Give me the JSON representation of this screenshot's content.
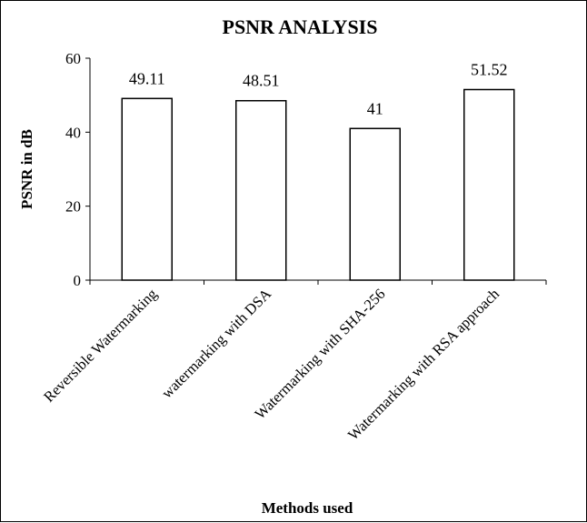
{
  "chart_data": {
    "type": "bar",
    "title": "PSNR ANALYSIS",
    "xlabel": "Methods used",
    "ylabel": "PSNR in dB",
    "categories": [
      "Reversible Watermarking",
      "watermarking with DSA",
      "Watermarking with SHA-256",
      "Watermarking with RSA approach"
    ],
    "values": [
      49.11,
      48.51,
      41,
      51.52
    ],
    "data_labels": [
      "49.11",
      "48.51",
      "41",
      "51.52"
    ],
    "ylim": [
      0,
      60
    ],
    "yticks": [
      0,
      20,
      40,
      60
    ],
    "grid": false,
    "legend": "none",
    "bar_fill": "#ffffff",
    "bar_stroke": "#000000"
  }
}
